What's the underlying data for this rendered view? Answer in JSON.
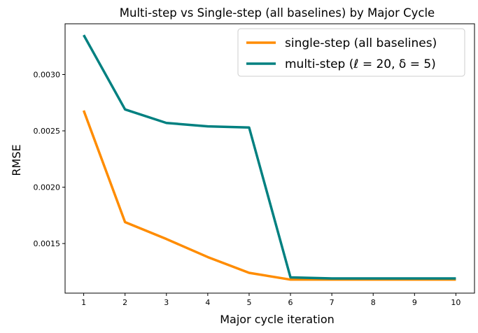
{
  "chart_data": {
    "type": "line",
    "title": "Multi-step vs Single-step (all baselines) by Major Cycle",
    "xlabel": "Major cycle iteration",
    "ylabel": "RMSE",
    "x": [
      1,
      2,
      3,
      4,
      5,
      6,
      7,
      8,
      9,
      10
    ],
    "xticks": [
      "1",
      "2",
      "3",
      "4",
      "5",
      "6",
      "7",
      "8",
      "9",
      "10"
    ],
    "yticks": [
      {
        "value": 0.0015,
        "label": "0.0015"
      },
      {
        "value": 0.002,
        "label": "0.0020"
      },
      {
        "value": 0.0025,
        "label": "0.0025"
      },
      {
        "value": 0.003,
        "label": "0.0030"
      }
    ],
    "xlim": [
      0.55,
      10.45
    ],
    "ylim": [
      0.00106,
      0.00345
    ],
    "grid": false,
    "legend_position": "top-right",
    "series": [
      {
        "name": "single-step (all baselines)",
        "color": "#ff8c00",
        "values": [
          0.00268,
          0.00169,
          0.00154,
          0.00138,
          0.00124,
          0.00118,
          0.00118,
          0.00118,
          0.00118,
          0.00118
        ]
      },
      {
        "name": "multi-step (ℓ = 20, δ = 5)",
        "color": "#008080",
        "values": [
          0.00335,
          0.00269,
          0.00257,
          0.00254,
          0.00253,
          0.0012,
          0.00119,
          0.00119,
          0.00119,
          0.00119
        ]
      }
    ]
  }
}
